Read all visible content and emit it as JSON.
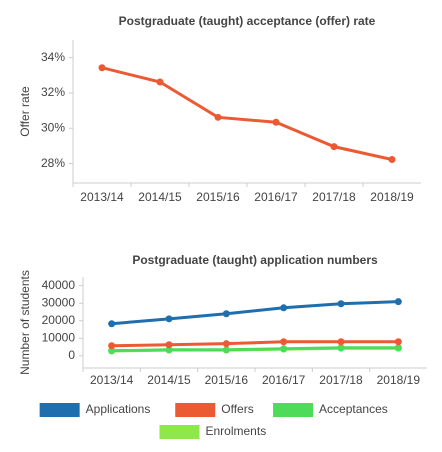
{
  "chart_data": [
    {
      "type": "line",
      "title": "Postgraduate (taught) acceptance (offer) rate",
      "y_label": "Offer rate",
      "categories": [
        "2013/14",
        "2014/15",
        "2015/16",
        "2016/17",
        "2017/18",
        "2018/19"
      ],
      "series": [
        {
          "name": "Offer rate",
          "color": "#ec5a34",
          "values": [
            33.43,
            32.62,
            30.62,
            30.34,
            28.96,
            28.23
          ]
        }
      ],
      "ylim": [
        26.9,
        35.0
      ],
      "yticks": [
        {
          "value": 28,
          "label": "28%"
        },
        {
          "value": 30,
          "label": "30%"
        },
        {
          "value": 32,
          "label": "32%"
        },
        {
          "value": 34,
          "label": "34%"
        }
      ],
      "legend": false
    },
    {
      "type": "line",
      "title": "Postgraduate (taught) application numbers",
      "y_label": "Number of students",
      "categories": [
        "2013/14",
        "2014/15",
        "2015/16",
        "2016/17",
        "2017/18",
        "2018/19"
      ],
      "series": [
        {
          "name": "Applications",
          "color": "#1f6fae",
          "values": [
            18300,
            21100,
            24000,
            27400,
            29700,
            30900
          ]
        },
        {
          "name": "Offers",
          "color": "#ec5a34",
          "values": [
            5700,
            6300,
            6900,
            8000,
            8000,
            8000
          ]
        },
        {
          "name": "Acceptances",
          "color": "#4fdb5a",
          "values": [
            2900,
            3400,
            3400,
            4000,
            4600,
            4600
          ]
        },
        {
          "name": "Enrolments",
          "color": "#8ee84a",
          "values": [
            2700,
            3200,
            3200,
            3800,
            4300,
            4300
          ]
        }
      ],
      "ylim": [
        -7000,
        45000
      ],
      "yticks": [
        0,
        10000,
        20000,
        30000,
        40000
      ],
      "legend": "bottom"
    }
  ]
}
